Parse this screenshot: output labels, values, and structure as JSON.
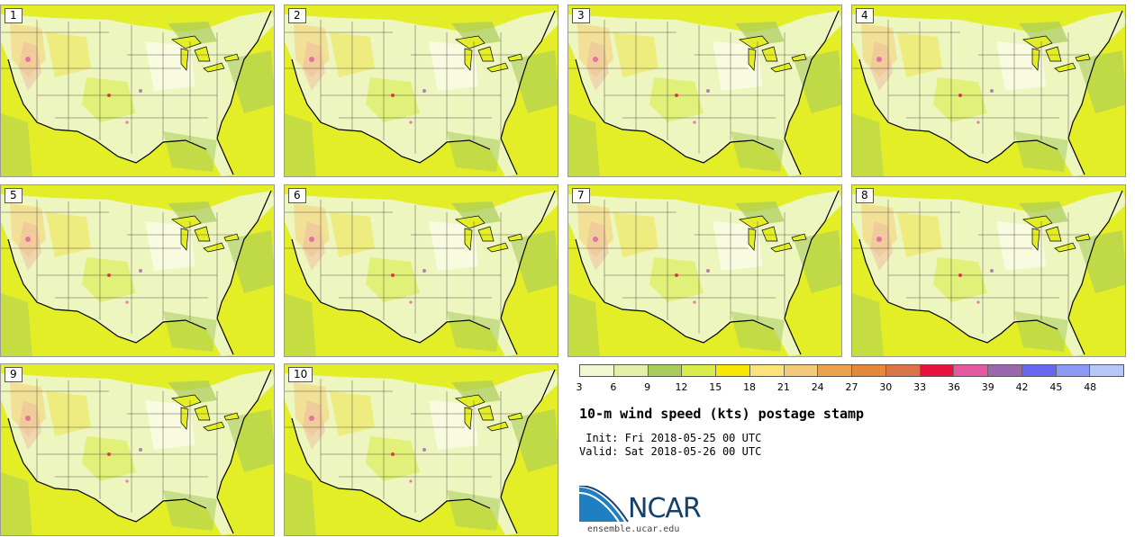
{
  "panels": [
    {
      "label": "1"
    },
    {
      "label": "2"
    },
    {
      "label": "3"
    },
    {
      "label": "4"
    },
    {
      "label": "5"
    },
    {
      "label": "6"
    },
    {
      "label": "7"
    },
    {
      "label": "8"
    },
    {
      "label": "9"
    },
    {
      "label": "10"
    }
  ],
  "colorbar": {
    "colors": [
      "#f2f7d2",
      "#e1f0a6",
      "#a9cc5c",
      "#d8ec4a",
      "#f6e800",
      "#fbe27a",
      "#f3c97a",
      "#e9a14c",
      "#e4883c",
      "#db7547",
      "#e8103c",
      "#e35aa3",
      "#9b68ad",
      "#6767f0",
      "#8c99f5",
      "#b7c7f7"
    ],
    "ticks": [
      "3",
      "6",
      "9",
      "12",
      "15",
      "18",
      "21",
      "24",
      "27",
      "30",
      "33",
      "36",
      "39",
      "42",
      "45",
      "48"
    ]
  },
  "title": "10-m wind speed (kts) postage stamp",
  "init": " Init: Fri 2018-05-25 00 UTC",
  "valid": "Valid: Sat 2018-05-26 00 UTC",
  "logo": {
    "text": "NCAR",
    "url": "ensemble.ucar.edu"
  }
}
